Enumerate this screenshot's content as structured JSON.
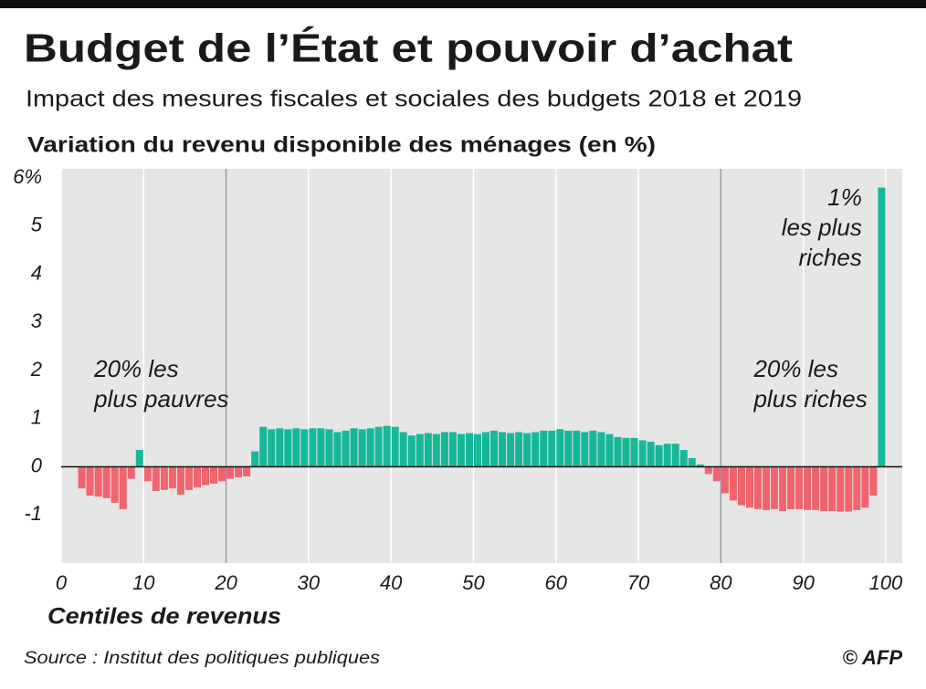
{
  "chart_data": {
    "type": "bar",
    "title": "Budget de l’État et pouvoir d’achat",
    "subtitle": "Impact des mesures fiscales et sociales des budgets 2018 et 2019",
    "y_label": "Variation du revenu disponible des ménages (en %)",
    "x_label": "Centiles de revenus",
    "source": "Source : Institut des politiques publiques",
    "credit": "© AFP",
    "annotations": [
      {
        "lines": [
          "20% les",
          "plus pauvres"
        ],
        "x": 4
      },
      {
        "lines": [
          "20% les",
          "plus riches"
        ],
        "x": 84
      },
      {
        "lines": [
          "1%",
          "les plus",
          "riches"
        ],
        "x": 98
      }
    ],
    "x": [
      1,
      2,
      3,
      4,
      5,
      6,
      7,
      8,
      9,
      10,
      11,
      12,
      13,
      14,
      15,
      16,
      17,
      18,
      19,
      20,
      21,
      22,
      23,
      24,
      25,
      26,
      27,
      28,
      29,
      30,
      31,
      32,
      33,
      34,
      35,
      36,
      37,
      38,
      39,
      40,
      41,
      42,
      43,
      44,
      45,
      46,
      47,
      48,
      49,
      50,
      51,
      52,
      53,
      54,
      55,
      56,
      57,
      58,
      59,
      60,
      61,
      62,
      63,
      64,
      65,
      66,
      67,
      68,
      69,
      70,
      71,
      72,
      73,
      74,
      75,
      76,
      77,
      78,
      79,
      80,
      81,
      82,
      83,
      84,
      85,
      86,
      87,
      88,
      89,
      90,
      91,
      92,
      93,
      94,
      95,
      96,
      97,
      98,
      99,
      100
    ],
    "values": [
      null,
      null,
      -0.45,
      -0.6,
      -0.62,
      -0.65,
      -0.75,
      -0.88,
      -0.25,
      0.35,
      -0.3,
      -0.5,
      -0.48,
      -0.45,
      -0.58,
      -0.48,
      -0.43,
      -0.38,
      -0.35,
      -0.3,
      -0.25,
      -0.22,
      -0.2,
      0.32,
      0.83,
      0.78,
      0.8,
      0.78,
      0.8,
      0.78,
      0.8,
      0.8,
      0.78,
      0.72,
      0.75,
      0.8,
      0.78,
      0.8,
      0.83,
      0.85,
      0.83,
      0.72,
      0.65,
      0.68,
      0.7,
      0.68,
      0.72,
      0.72,
      0.68,
      0.7,
      0.68,
      0.72,
      0.75,
      0.72,
      0.7,
      0.72,
      0.7,
      0.72,
      0.75,
      0.75,
      0.78,
      0.75,
      0.75,
      0.72,
      0.75,
      0.72,
      0.68,
      0.62,
      0.6,
      0.6,
      0.55,
      0.52,
      0.45,
      0.48,
      0.48,
      0.35,
      0.18,
      0.05,
      -0.15,
      -0.3,
      -0.55,
      -0.7,
      -0.8,
      -0.85,
      -0.88,
      -0.9,
      -0.88,
      -0.92,
      -0.88,
      -0.88,
      -0.9,
      -0.9,
      -0.92,
      -0.92,
      -0.93,
      -0.93,
      -0.9,
      -0.85,
      -0.6,
      5.8
    ],
    "colors": {
      "positive": "#17b897",
      "negative": "#f0646e"
    },
    "xlim": [
      0,
      102
    ],
    "xticks": [
      0,
      10,
      20,
      30,
      40,
      50,
      60,
      70,
      80,
      90,
      100
    ],
    "separators": [
      20,
      80
    ],
    "ylim": [
      -2,
      6
    ],
    "yticks": [
      -1,
      0,
      1,
      2,
      3,
      4,
      5,
      {
        "value": 6,
        "label": "6%"
      }
    ],
    "grid": true
  }
}
